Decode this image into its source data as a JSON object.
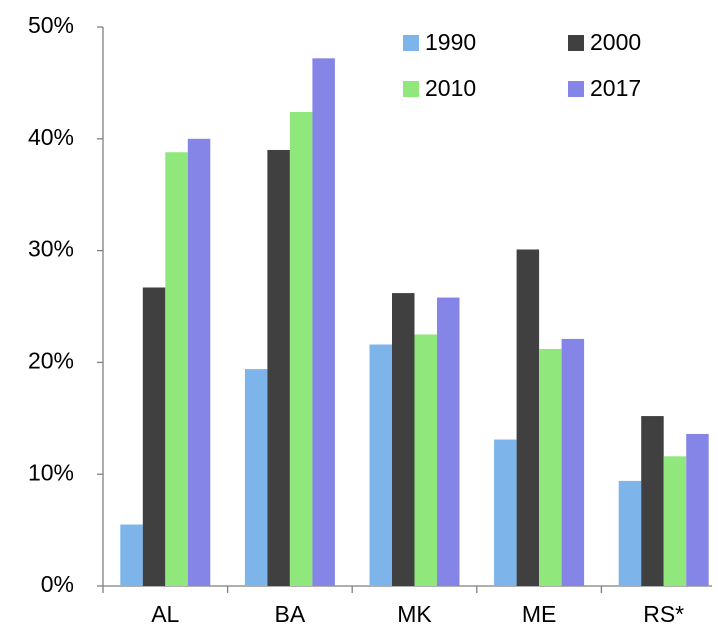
{
  "chart_data": {
    "type": "bar",
    "categories": [
      "AL",
      "BA",
      "MK",
      "ME",
      "RS*"
    ],
    "series": [
      {
        "name": "1990",
        "color": "#7db4ea",
        "values": [
          5.5,
          19.4,
          21.6,
          13.1,
          9.4
        ]
      },
      {
        "name": "2000",
        "color": "#404040",
        "values": [
          26.7,
          39.0,
          26.2,
          30.1,
          15.2
        ]
      },
      {
        "name": "2010",
        "color": "#90e87c",
        "values": [
          38.8,
          42.4,
          22.5,
          21.2,
          11.6
        ]
      },
      {
        "name": "2017",
        "color": "#8585e8",
        "values": [
          40.0,
          47.2,
          25.8,
          22.1,
          13.6
        ]
      }
    ],
    "ylim": [
      0,
      50
    ],
    "yticks": [
      {
        "value": 0,
        "label": "0%"
      },
      {
        "value": 10,
        "label": "10%"
      },
      {
        "value": 20,
        "label": "20%"
      },
      {
        "value": 30,
        "label": "30%"
      },
      {
        "value": 40,
        "label": "40%"
      },
      {
        "value": 50,
        "label": "50%"
      }
    ],
    "grid": false,
    "legend": "upper right"
  }
}
